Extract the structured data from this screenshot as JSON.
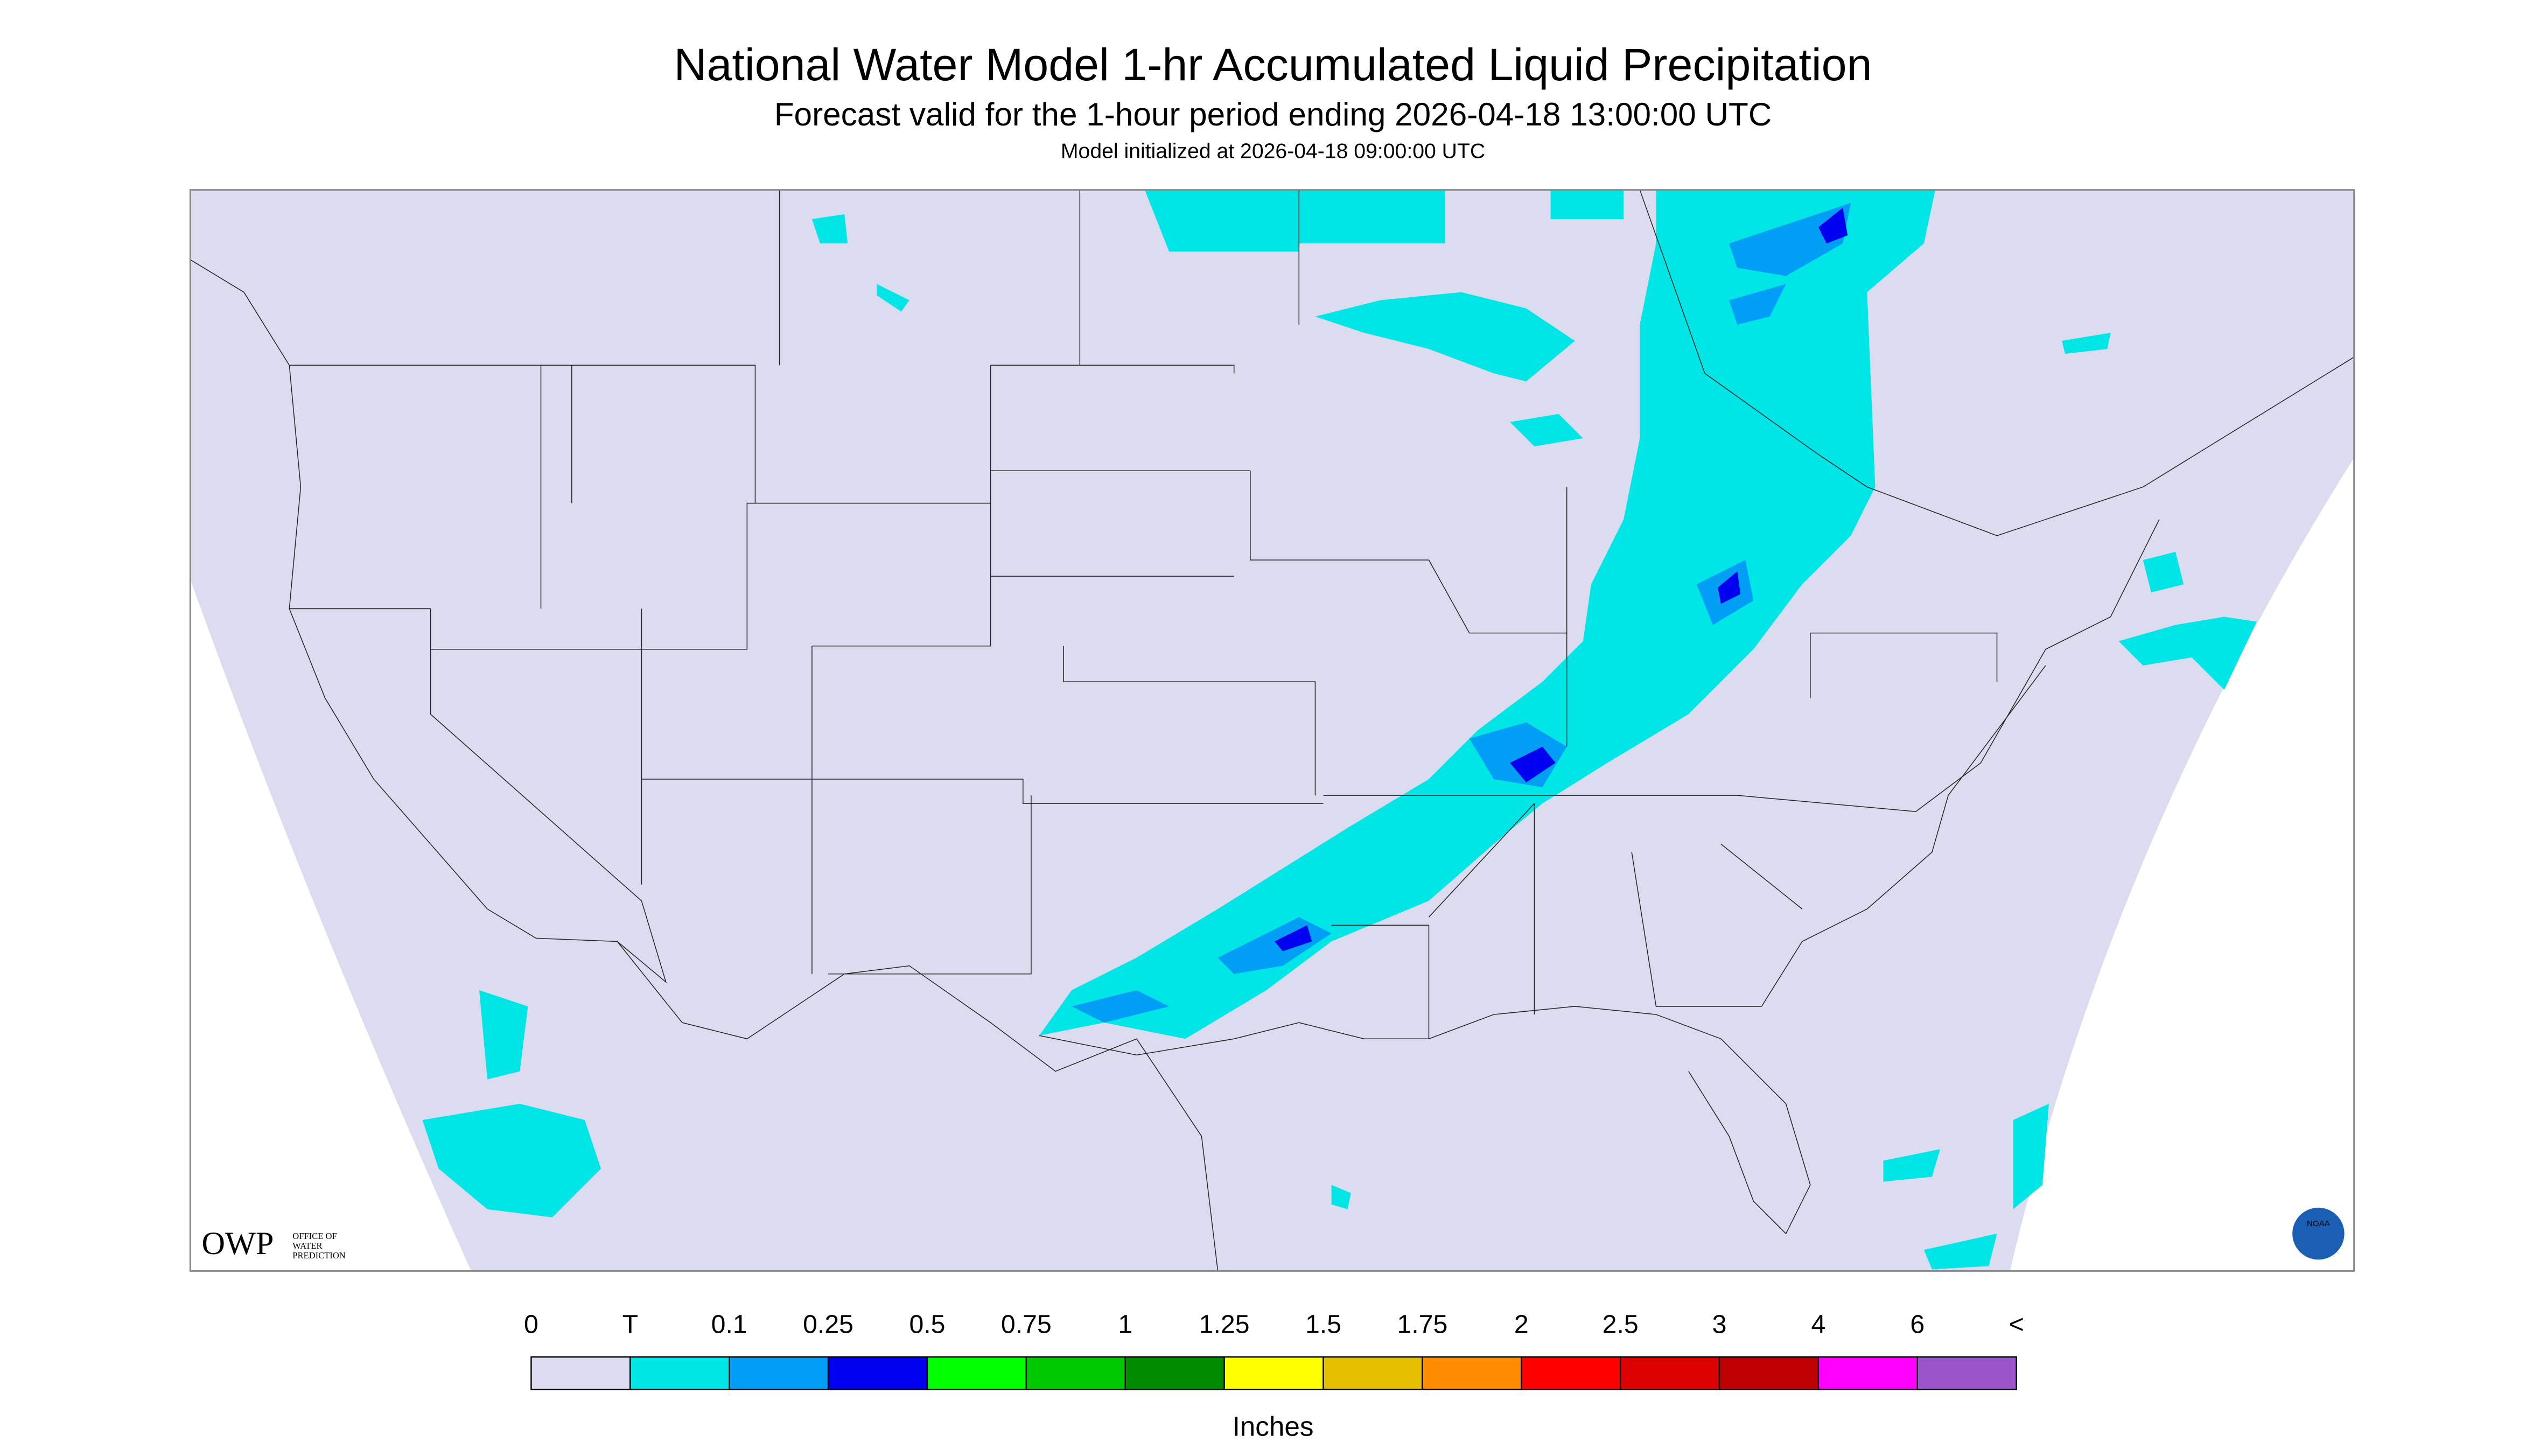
{
  "header": {
    "title": "National Water Model 1-hr Accumulated Liquid Precipitation",
    "subtitle": "Forecast valid for the 1-hour period ending 2026-04-18 13:00:00 UTC",
    "note": "Model initialized at 2026-04-18 09:00:00 UTC"
  },
  "logo": {
    "acronym": "OWP",
    "lines": [
      "OFFICE OF",
      "WATER",
      "PREDICTION"
    ],
    "badge": "NOAA"
  },
  "legend": {
    "labels": [
      "0",
      "T",
      "0.1",
      "0.25",
      "0.5",
      "0.75",
      "1",
      "1.25",
      "1.5",
      "1.75",
      "2",
      "2.5",
      "3",
      "4",
      "6",
      "<"
    ],
    "colors": [
      "#dcdcf0",
      "#00e6e6",
      "#009ef5",
      "#0000f0",
      "#00ff00",
      "#00c800",
      "#008c00",
      "#ffff00",
      "#e6c000",
      "#ff8c00",
      "#ff0000",
      "#dc0000",
      "#be0000",
      "#ff00ff",
      "#9955c9"
    ],
    "unit": "Inches"
  }
}
